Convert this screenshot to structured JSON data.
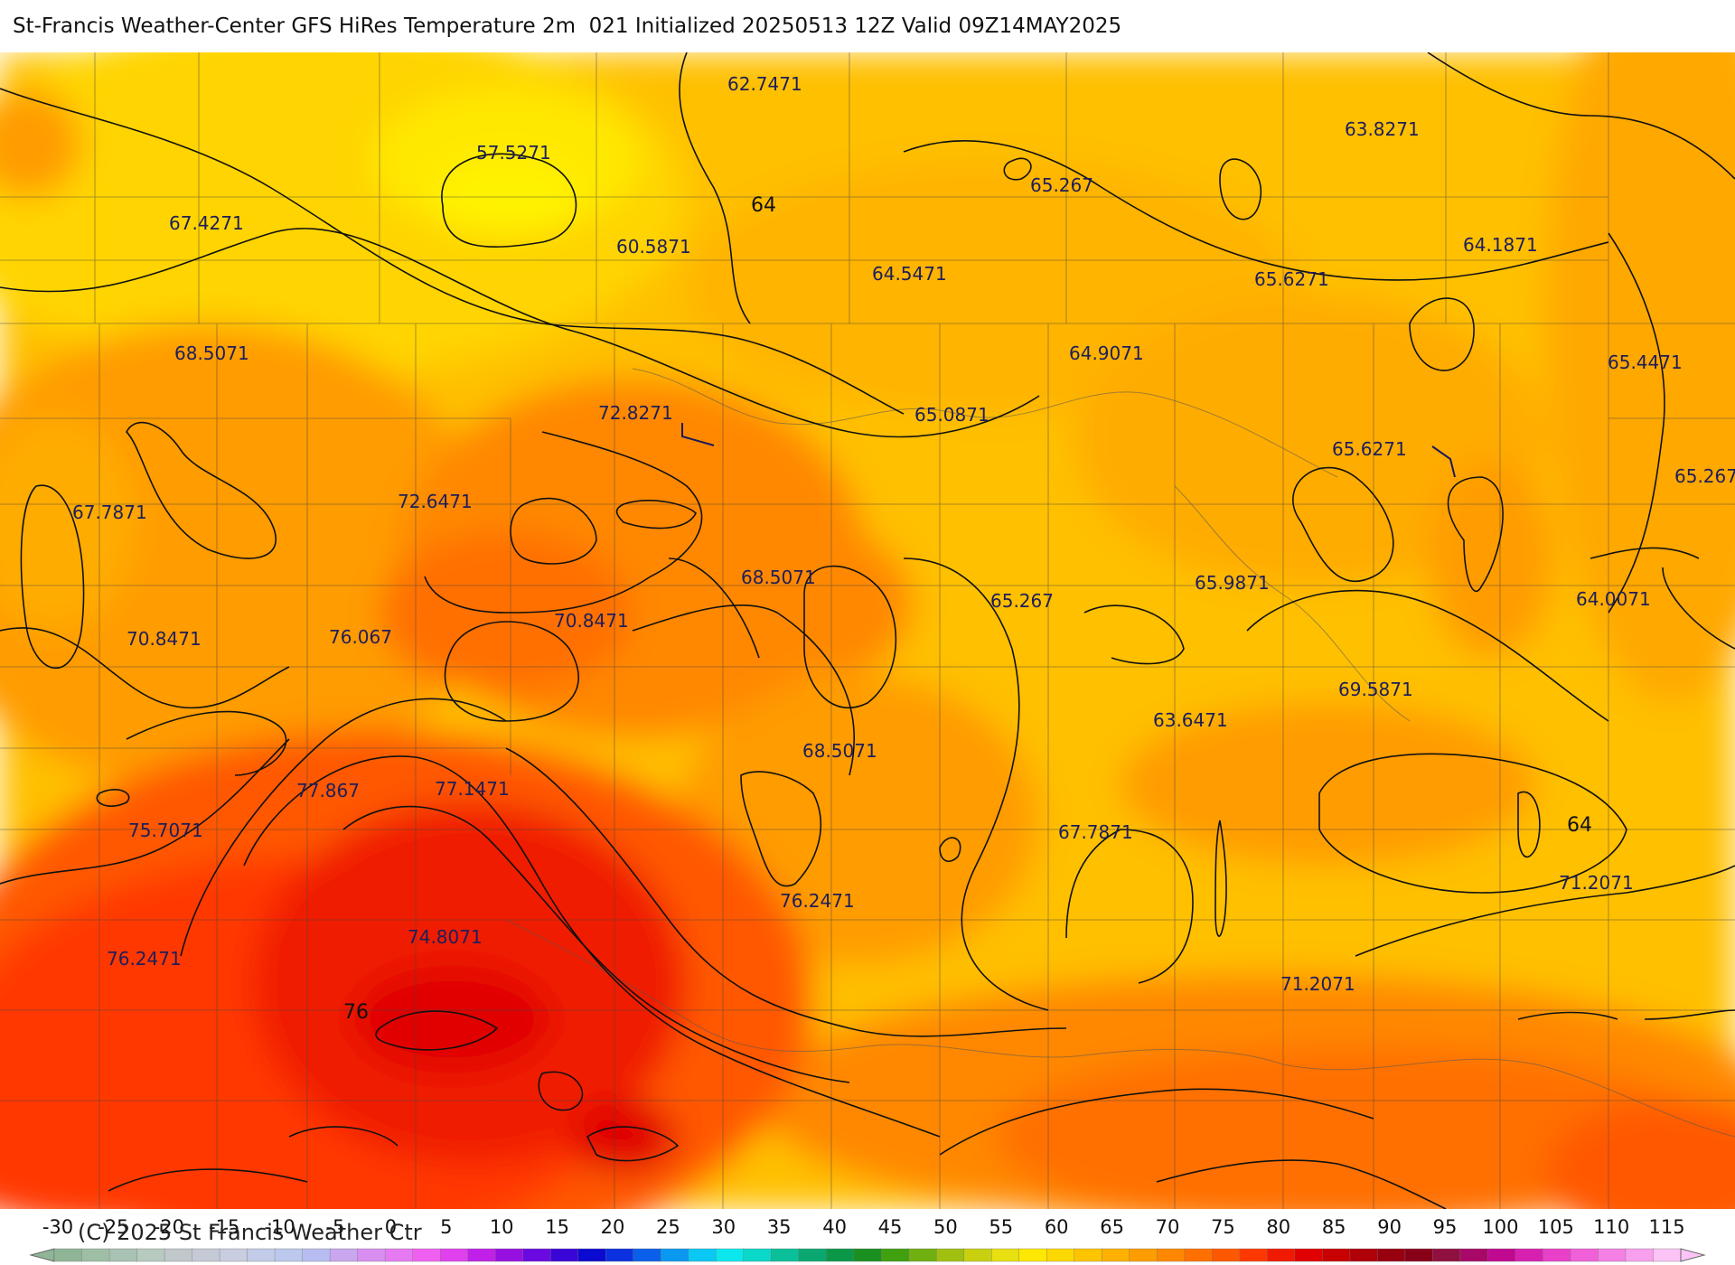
{
  "title": "St-Francis Weather-Center GFS HiRes Temperature 2m  021 Initialized 20250513 12Z Valid 09Z14MAY2025",
  "copyright": "(C) 2025 St Francis Weather Ctr",
  "labels": [
    {
      "text": "62.7471"
    },
    {
      "text": "57.5271"
    },
    {
      "text": "63.8271"
    },
    {
      "text": "65.267"
    },
    {
      "text": "67.4271"
    },
    {
      "text": "64"
    },
    {
      "text": "60.5871"
    },
    {
      "text": "64.5471"
    },
    {
      "text": "64.1871"
    },
    {
      "text": "65.6271"
    },
    {
      "text": "68.5071"
    },
    {
      "text": "64.9071"
    },
    {
      "text": "65.4471"
    },
    {
      "text": "72.8271"
    },
    {
      "text": "65.0871"
    },
    {
      "text": "65.6271"
    },
    {
      "text": "65.267"
    },
    {
      "text": "67.7871"
    },
    {
      "text": "72.6471"
    },
    {
      "text": "68.5071"
    },
    {
      "text": "65.9871"
    },
    {
      "text": "65.267"
    },
    {
      "text": "64.0071"
    },
    {
      "text": "70.8471"
    },
    {
      "text": "76.067"
    },
    {
      "text": "70.8471"
    },
    {
      "text": "69.5871"
    },
    {
      "text": "63.6471"
    },
    {
      "text": "68.5071"
    },
    {
      "text": "77.867"
    },
    {
      "text": "77.1471"
    },
    {
      "text": "64"
    },
    {
      "text": "75.7071"
    },
    {
      "text": "67.7871"
    },
    {
      "text": "71.2071"
    },
    {
      "text": "76.2471"
    },
    {
      "text": "74.8071"
    },
    {
      "text": "76.2471"
    },
    {
      "text": "71.2071"
    },
    {
      "text": "76"
    }
  ],
  "colorbar": {
    "ticks": [
      "-30",
      "-25",
      "-20",
      "-15",
      "-10",
      "-5",
      "0",
      "5",
      "10",
      "15",
      "20",
      "25",
      "30",
      "35",
      "40",
      "45",
      "50",
      "55",
      "60",
      "65",
      "70",
      "75",
      "80",
      "85",
      "90",
      "95",
      "100",
      "105",
      "110",
      "115"
    ],
    "colors": [
      "#8fb596",
      "#9fbea6",
      "#a8c2b3",
      "#b6cabf",
      "#c0c8cc",
      "#c6cad6",
      "#c8cde0",
      "#c2cce8",
      "#bdc8ee",
      "#b7bdf0",
      "#c9a6ee",
      "#d88ef0",
      "#e67af2",
      "#f060f0",
      "#e040ee",
      "#c020e8",
      "#9810e0",
      "#6a0ae0",
      "#3a06d8",
      "#0a0ad0",
      "#0a30e0",
      "#0a60ea",
      "#0a98f0",
      "#0ac8f4",
      "#0ae8ee",
      "#0ad8c8",
      "#0ac09a",
      "#0aa870",
      "#0a9848",
      "#1a9020",
      "#40a010",
      "#70b010",
      "#a0c010",
      "#c8d010",
      "#e8e010",
      "#ffe800",
      "#ffd800",
      "#ffc400",
      "#ffb000",
      "#ff9c00",
      "#ff8800",
      "#ff7000",
      "#ff5800",
      "#ff3800",
      "#f01a00",
      "#e00000",
      "#c80000",
      "#b00008",
      "#980010",
      "#880018",
      "#901040",
      "#a80868",
      "#c00890",
      "#d820b0",
      "#e840c8",
      "#f060d8",
      "#f480e4",
      "#f8a0ee",
      "#fcc4f6"
    ]
  }
}
